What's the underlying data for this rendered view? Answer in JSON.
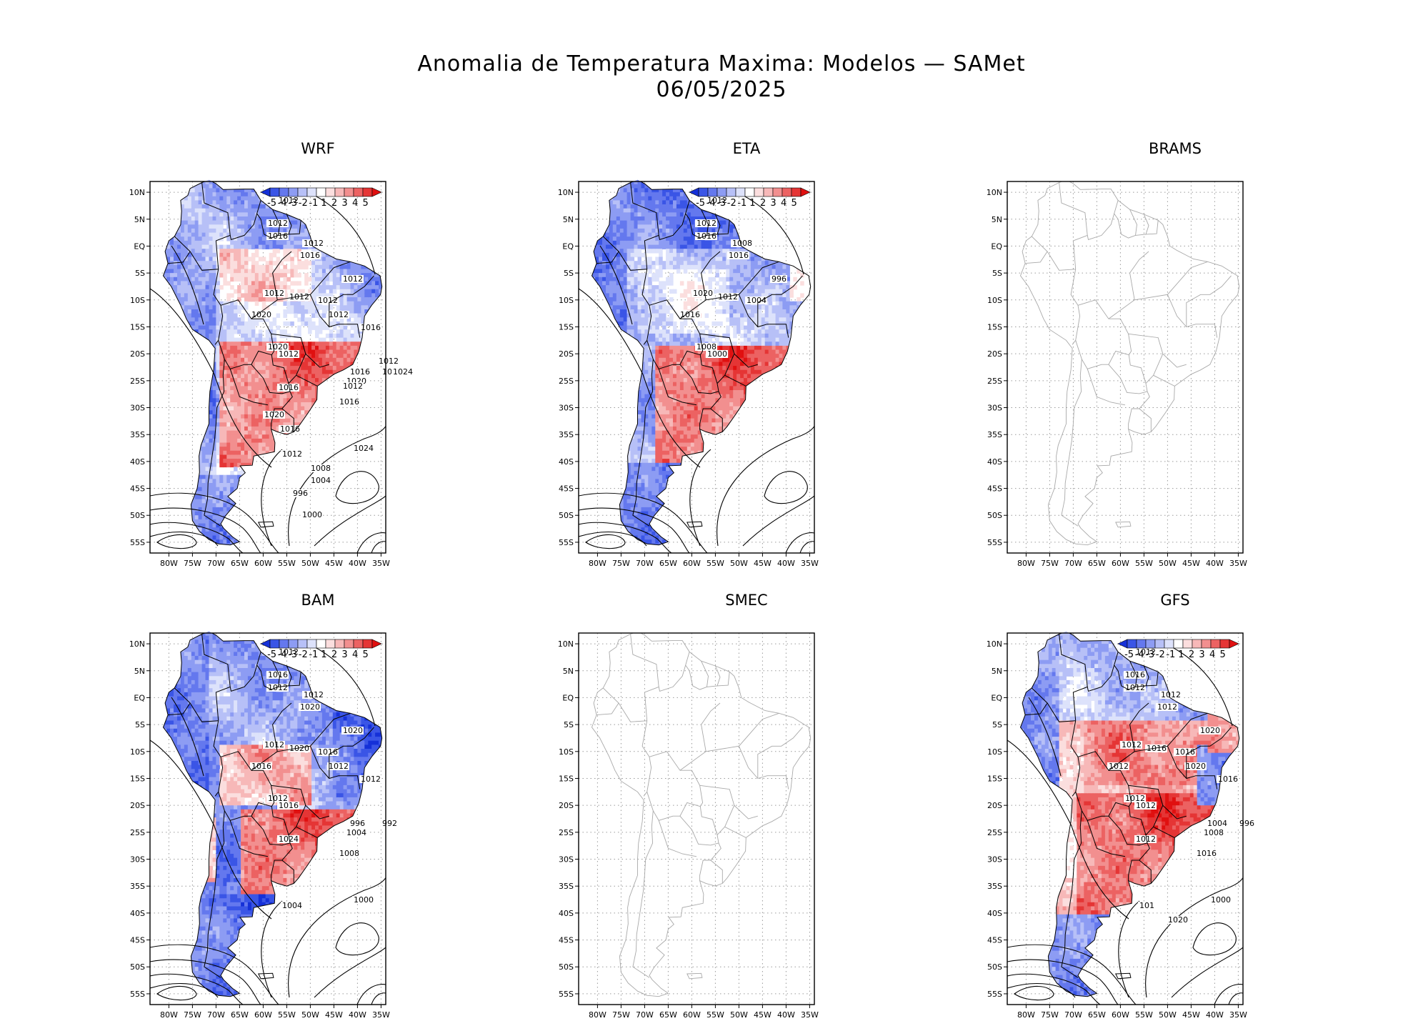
{
  "title": {
    "line1": "Anomalia de Temperatura Maxima: Modelos — SAMet",
    "line2": "06/05/2025"
  },
  "axes": {
    "lat_labels": [
      "10N",
      "5N",
      "EQ",
      "5S",
      "10S",
      "15S",
      "20S",
      "25S",
      "30S",
      "35S",
      "40S",
      "45S",
      "50S",
      "55S"
    ],
    "lon_labels": [
      "80W",
      "75W",
      "70W",
      "65W",
      "60W",
      "55W",
      "50W",
      "45W",
      "40W",
      "35W"
    ]
  },
  "colorbar": {
    "labels": [
      "-5",
      "-4",
      "-3",
      "-2",
      "-1",
      "1",
      "2",
      "3",
      "4",
      "5"
    ],
    "colors": [
      "#1530d8",
      "#3a55e6",
      "#6478ee",
      "#8d9cf3",
      "#b7c0f7",
      "#dde2fb",
      "#ffffff",
      "#fbdede",
      "#f7b8b8",
      "#f28f8f",
      "#ec6262",
      "#e53535",
      "#e01010"
    ]
  },
  "panels": [
    {
      "name": "WRF",
      "has_data": true,
      "isobar_labels": [
        "1012",
        "1012",
        "1016",
        "1012",
        "1016",
        "1012",
        "1020",
        "1012",
        "1020",
        "1012",
        "1012",
        "1012",
        "1012",
        "1016",
        "1016",
        "1020",
        "1016",
        "1016",
        "1024",
        "1016",
        "1012",
        "1008",
        "1004",
        "996",
        "1000",
        "1024",
        "1012",
        "1012",
        "1016",
        "1020"
      ]
    },
    {
      "name": "ETA",
      "has_data": true,
      "isobar_labels": [
        "1012",
        "1012",
        "1016",
        "1008",
        "1016",
        "1020",
        "1016",
        "1012",
        "1008",
        "1004",
        "996",
        "1000"
      ]
    },
    {
      "name": "BRAMS",
      "has_data": false,
      "isobar_labels": []
    },
    {
      "name": "BAM",
      "has_data": true,
      "isobar_labels": [
        "1012",
        "1016",
        "1012",
        "1012",
        "1020",
        "1012",
        "1016",
        "1020",
        "1012",
        "1016",
        "1020",
        "1016",
        "1012",
        "1012",
        "1008",
        "1004",
        "996",
        "992",
        "1000",
        "1024",
        "1004"
      ]
    },
    {
      "name": "SMEC",
      "has_data": false,
      "isobar_labels": []
    },
    {
      "name": "GFS",
      "has_data": true,
      "isobar_labels": [
        "1012",
        "1016",
        "1012",
        "1012",
        "1012",
        "1012",
        "1012",
        "1016",
        "1012",
        "1016",
        "1020",
        "1012",
        "1020",
        "1016",
        "1016",
        "1008",
        "1004",
        "996",
        "1000",
        "1012",
        "101",
        "1020"
      ]
    }
  ]
}
